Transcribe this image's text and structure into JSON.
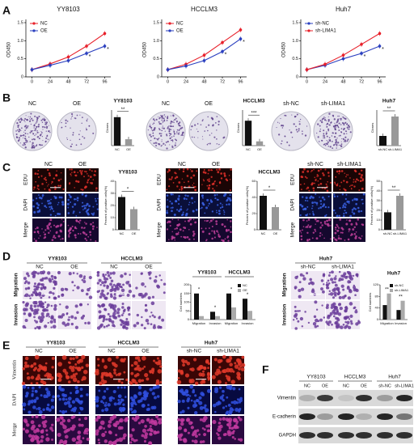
{
  "panel_labels": [
    "A",
    "B",
    "C",
    "D",
    "E",
    "F"
  ],
  "line_charts": [
    {
      "title": "YY8103",
      "ylabel": "OD450",
      "x": [
        0,
        24,
        48,
        72,
        96
      ],
      "xlim": [
        -8,
        104
      ],
      "xticks": [
        0,
        24,
        48,
        72,
        96
      ],
      "ylim": [
        0,
        1.5
      ],
      "yticks": [
        0,
        0.5,
        {
          "value": 1.0,
          "label": "1.0"
        },
        1.5
      ],
      "series": [
        {
          "name": "NC",
          "color": "#e8202a",
          "values": [
            0.2,
            0.36,
            0.55,
            0.85,
            1.2
          ]
        },
        {
          "name": "OE",
          "color": "#2a3fbf",
          "values": [
            0.2,
            0.32,
            0.45,
            0.65,
            0.85
          ]
        }
      ],
      "annotations": [
        {
          "text": "*",
          "x": 72
        },
        {
          "text": "*",
          "x": 96
        }
      ]
    },
    {
      "title": "HCCLM3",
      "ylabel": "OD450",
      "x": [
        0,
        24,
        48,
        72,
        96
      ],
      "xlim": [
        -8,
        104
      ],
      "xticks": [
        0,
        24,
        48,
        72,
        96
      ],
      "ylim": [
        0,
        1.5
      ],
      "yticks": [
        0,
        0.5,
        {
          "value": 1.0,
          "label": "1.0"
        },
        1.5
      ],
      "series": [
        {
          "name": "NC",
          "color": "#e8202a",
          "values": [
            0.2,
            0.35,
            0.6,
            0.95,
            1.3
          ]
        },
        {
          "name": "OE",
          "color": "#2a3fbf",
          "values": [
            0.2,
            0.3,
            0.45,
            0.7,
            1.05
          ]
        }
      ],
      "annotations": [
        {
          "text": "*",
          "x": 72
        },
        {
          "text": "*",
          "x": 96
        }
      ]
    },
    {
      "title": "Huh7",
      "ylabel": "OD450",
      "x": [
        0,
        24,
        48,
        72,
        96
      ],
      "xlim": [
        -8,
        104
      ],
      "xticks": [
        0,
        24,
        48,
        72,
        96
      ],
      "ylim": [
        0,
        1.5
      ],
      "yticks": [
        0,
        0.5,
        {
          "value": 1.0,
          "label": "1.0"
        },
        1.5
      ],
      "series": [
        {
          "name": "sh-NC",
          "color": "#2a3fbf",
          "values": [
            0.2,
            0.32,
            0.5,
            0.65,
            0.85
          ]
        },
        {
          "name": "sh-LIMA1",
          "color": "#e8202a",
          "values": [
            0.2,
            0.35,
            0.6,
            0.9,
            1.2
          ]
        }
      ],
      "annotations": [
        {
          "text": "*",
          "x": 72
        },
        {
          "text": "*",
          "x": 96
        }
      ]
    }
  ],
  "colony": {
    "dish_labels": [
      [
        "NC",
        "OE"
      ],
      [
        "NC",
        "OE"
      ],
      [
        "sh-NC",
        "sh-LIMA1"
      ]
    ],
    "charts": [
      {
        "title": "YY8103",
        "ylabel": "Clones",
        "categories": [
          "NC",
          "OE"
        ],
        "values": [
          400,
          90
        ],
        "colors": [
          "#111111",
          "#999999"
        ],
        "ylim": [
          0,
          500
        ],
        "significance": "**"
      },
      {
        "title": "HCCLM3",
        "ylabel": "Clones",
        "categories": [
          "NC",
          "OE"
        ],
        "values": [
          350,
          60
        ],
        "colors": [
          "#111111",
          "#999999"
        ],
        "ylim": [
          0,
          500
        ],
        "significance": "***"
      },
      {
        "title": "Huh7",
        "ylabel": "Clones",
        "categories": [
          "sh-NC",
          "sh-LIMA1"
        ],
        "values": [
          150,
          450
        ],
        "colors": [
          "#111111",
          "#999999"
        ],
        "ylim": [
          0,
          550
        ],
        "significance": "**"
      }
    ]
  },
  "edu": {
    "row_labels": [
      "EDU",
      "DAPI",
      "Merge"
    ],
    "column_labels": [
      [
        "NC",
        "OE"
      ],
      [
        "NC",
        "OE"
      ],
      [
        "sh-NC",
        "sh-LIMA1"
      ]
    ],
    "charts": [
      {
        "title": "YY8103",
        "ylabel": "Percent of positive cells(%)",
        "categories": [
          "NC",
          "OE"
        ],
        "values": [
          27,
          17
        ],
        "colors": [
          "#111111",
          "#999999"
        ],
        "ylim": [
          0,
          40
        ],
        "yticks": [
          0,
          10,
          20,
          30,
          40
        ],
        "significance": "*"
      },
      {
        "title": "HCCLM3",
        "ylabel": "Percent of positive cells(%)",
        "categories": [
          "NC",
          "OE"
        ],
        "values": [
          42,
          28
        ],
        "colors": [
          "#111111",
          "#999999"
        ],
        "ylim": [
          0,
          60
        ],
        "yticks": [
          0,
          20,
          40,
          60
        ],
        "significance": "*"
      },
      {
        "ylabel": "Percent of positive cells(%)",
        "categories": [
          "sh-NC",
          "sh-LIMA1"
        ],
        "values": [
          18,
          35
        ],
        "colors": [
          "#111111",
          "#999999"
        ],
        "ylim": [
          0,
          50
        ],
        "yticks": [
          0,
          10,
          20,
          30,
          40,
          50
        ],
        "significance": "**"
      }
    ]
  },
  "transwell": {
    "row_labels": [
      "Migration",
      "Invasion"
    ],
    "group_labels": [
      "YY8103",
      "HCCLM3",
      "Huh7"
    ],
    "column_labels": [
      [
        "NC",
        "OE"
      ],
      [
        "NC",
        "OE"
      ],
      [
        "sh-NC",
        "sh-LIMA1"
      ]
    ],
    "charts": [
      {
        "groups": [
          "YY8103",
          "HCCLM3"
        ],
        "ylabel": "Cell numbers",
        "categories": [
          "Migration",
          "Invasion",
          "Migration",
          "Invasion"
        ],
        "series": [
          {
            "name": "NC",
            "color": "#111111",
            "values": [
              150,
              45,
              150,
              120
            ]
          },
          {
            "name": "OE",
            "color": "#aaaaaa",
            "values": [
              20,
              20,
              70,
              50
            ]
          }
        ],
        "ylim": [
          0,
          200
        ],
        "yticks": [
          0,
          50,
          100,
          150,
          200
        ],
        "significance": [
          "*",
          "*",
          "*",
          "*"
        ]
      },
      {
        "title": "Huh7",
        "ylabel": "Cell numbers",
        "categories": [
          "Migration",
          "Invasion"
        ],
        "series": [
          {
            "name": "sh-NC",
            "color": "#111111",
            "values": [
              50,
              33
            ]
          },
          {
            "name": "sh-LIMA1",
            "color": "#aaaaaa",
            "values": [
              90,
              65
            ]
          }
        ],
        "ylim": [
          0,
          120
        ],
        "yticks": [
          0,
          40,
          80,
          120
        ],
        "significance": [
          "**",
          "**"
        ]
      }
    ]
  },
  "immunofluorescence": {
    "row_labels": [
      "Vimentin",
      "DAPI",
      "Merge"
    ],
    "group_labels": [
      "YY8103",
      "HCCLM3",
      "Huh7"
    ],
    "column_labels": [
      [
        "NC",
        "OE"
      ],
      [
        "NC",
        "OE"
      ],
      [
        "sh-NC",
        "sh-LIMA1"
      ]
    ]
  },
  "western": {
    "group_labels": [
      "YY8103",
      "HCCLM3",
      "Huh7"
    ],
    "lane_labels": [
      "NC",
      "OE",
      "NC",
      "OE",
      "sh-NC",
      "sh-LIMA1"
    ],
    "row_labels": [
      "Vimentin",
      "E-cadherin",
      "GAPDH"
    ]
  }
}
